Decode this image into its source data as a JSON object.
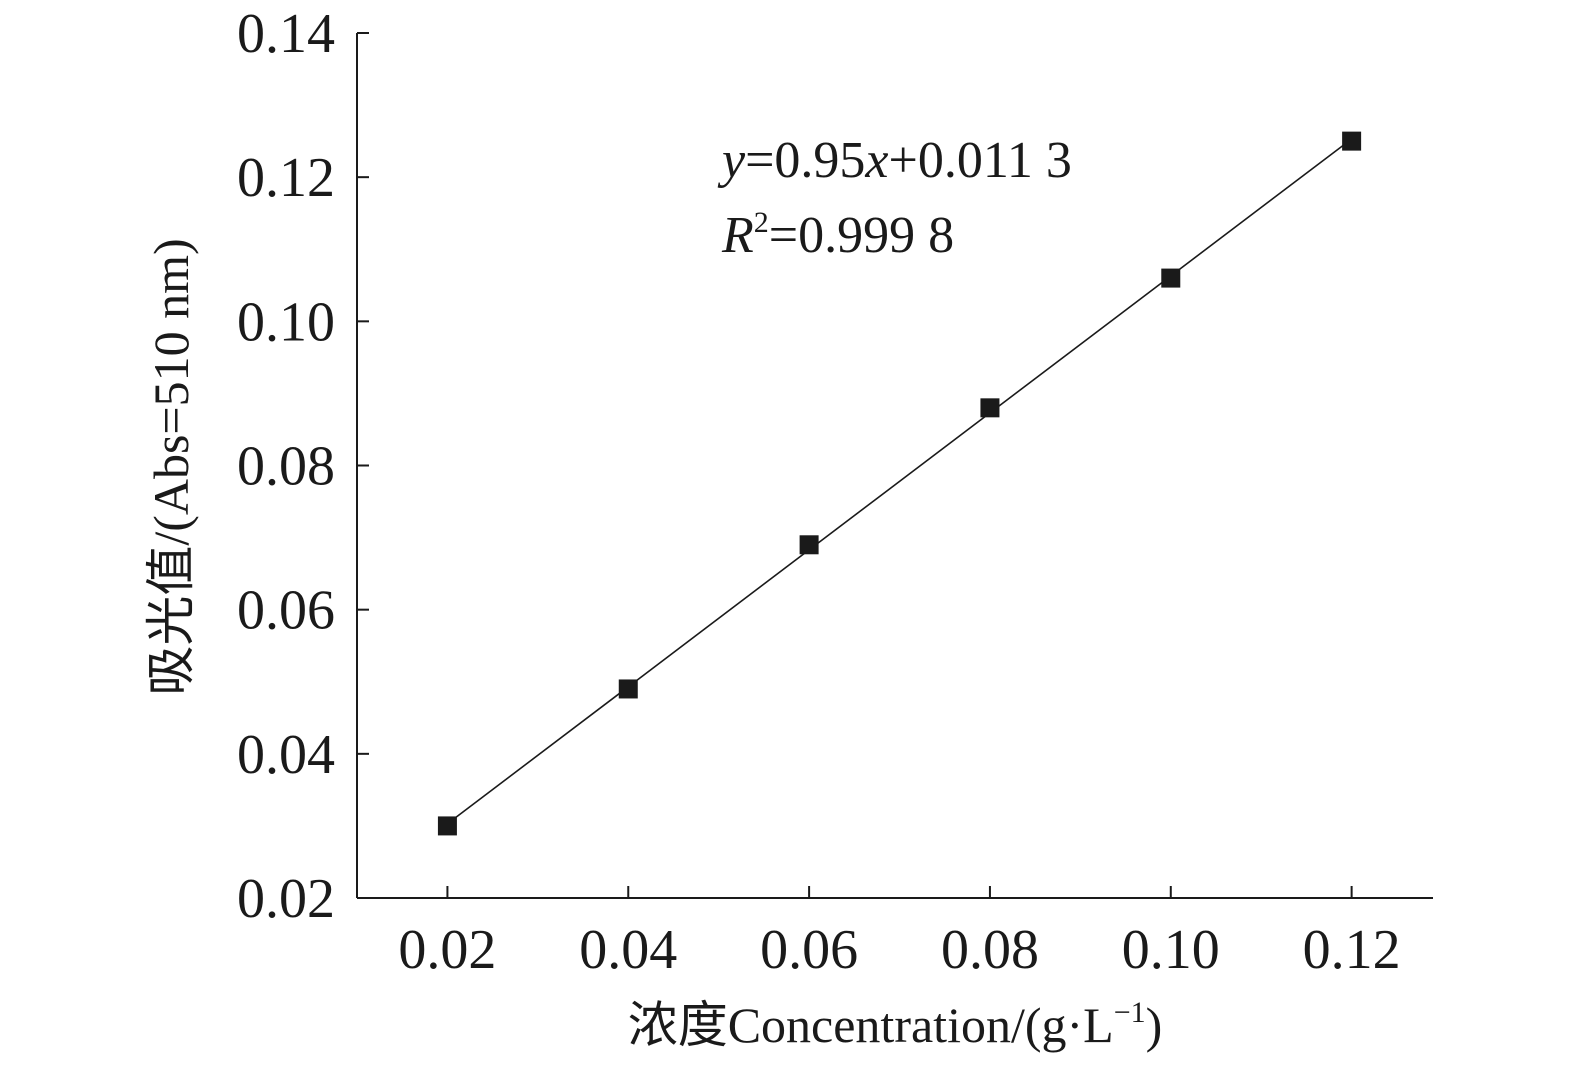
{
  "chart_data": {
    "type": "scatter",
    "xlabel": "浓度Concentration/(g·L",
    "xlabel_sup": "−1",
    "xlabel_end": ")",
    "ylabel": "吸光值/(Abs=510 nm)",
    "xlim": [
      0.01,
      0.129
    ],
    "ylim": [
      0.02,
      0.14
    ],
    "x_ticks": [
      "0.02",
      "0.04",
      "0.06",
      "0.08",
      "0.10",
      "0.12"
    ],
    "y_ticks": [
      "0.02",
      "0.04",
      "0.06",
      "0.08",
      "0.10",
      "0.12",
      "0.14"
    ],
    "series": [
      {
        "x": [
          0.02,
          0.04,
          0.06,
          0.08,
          0.1,
          0.12
        ],
        "y": [
          0.03,
          0.049,
          0.069,
          0.088,
          0.106,
          0.125
        ],
        "marker": "square",
        "color": "#1a1a1a"
      }
    ],
    "fit_line": {
      "slope": 0.95,
      "intercept": 0.0113,
      "x_range": [
        0.02,
        0.12
      ]
    },
    "annotations": {
      "eq_var": "y",
      "eq_body_1": "=0.95",
      "eq_x": "x",
      "eq_body_2": "+0.011 3",
      "r2_var": "R",
      "r2_sup": "2",
      "r2_body": "=0.999 8"
    },
    "grid": false,
    "legend": "none"
  }
}
